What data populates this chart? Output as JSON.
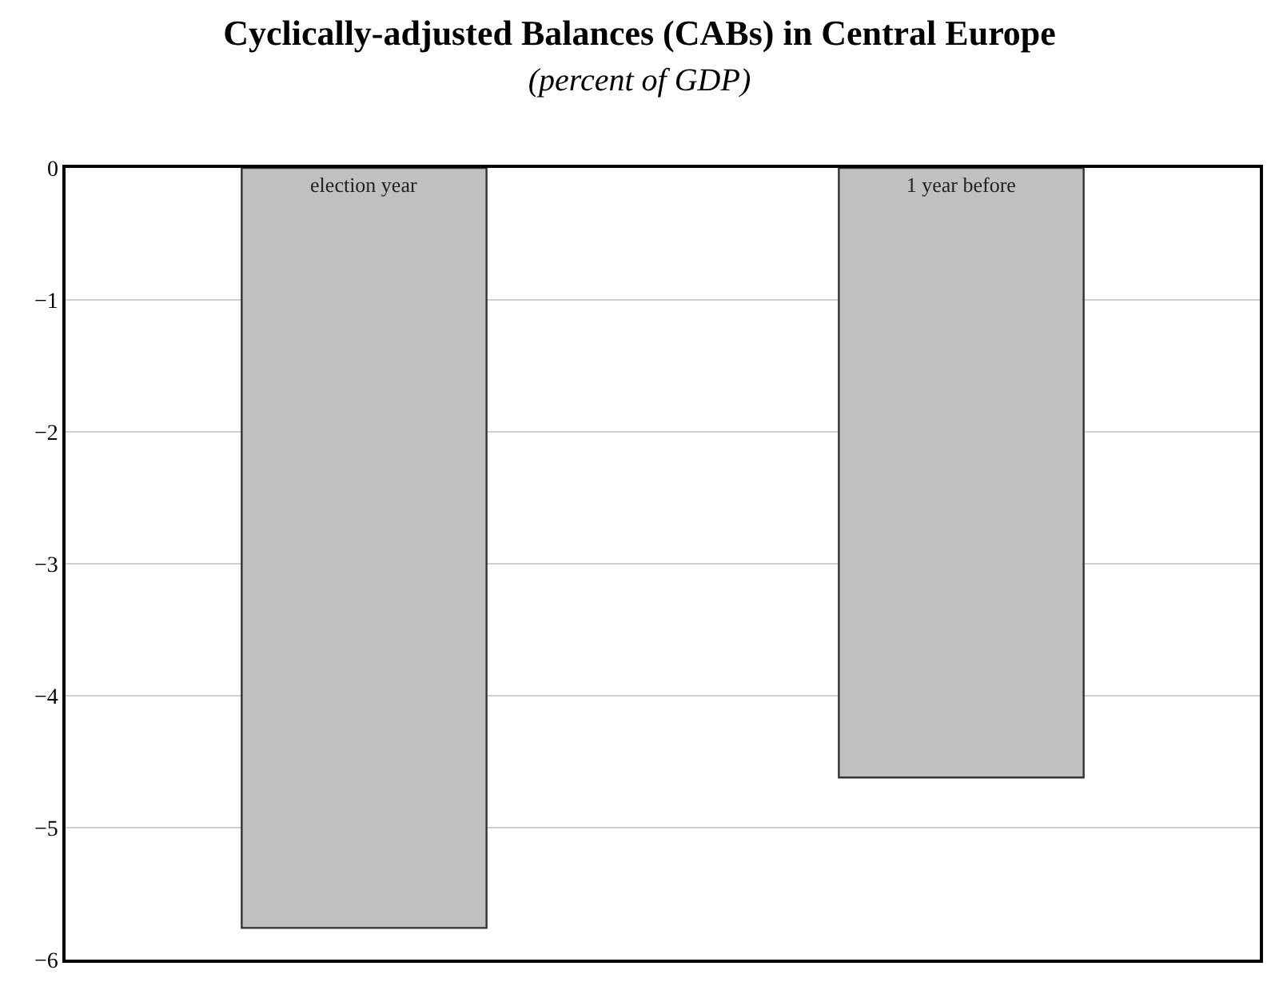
{
  "chart_data": {
    "type": "bar",
    "title": "Cyclically-adjusted Balances (CABs) in Central Europe",
    "subtitle": "(percent of GDP)",
    "categories": [
      "election year",
      "1 year before"
    ],
    "values": [
      -5.76,
      -4.62
    ],
    "color": "#c0c0c0",
    "ylim": [
      -6,
      0
    ],
    "yticks": [
      0,
      -1,
      -2,
      -3,
      -4,
      -5,
      -6
    ],
    "grid": "y",
    "legend": false
  }
}
